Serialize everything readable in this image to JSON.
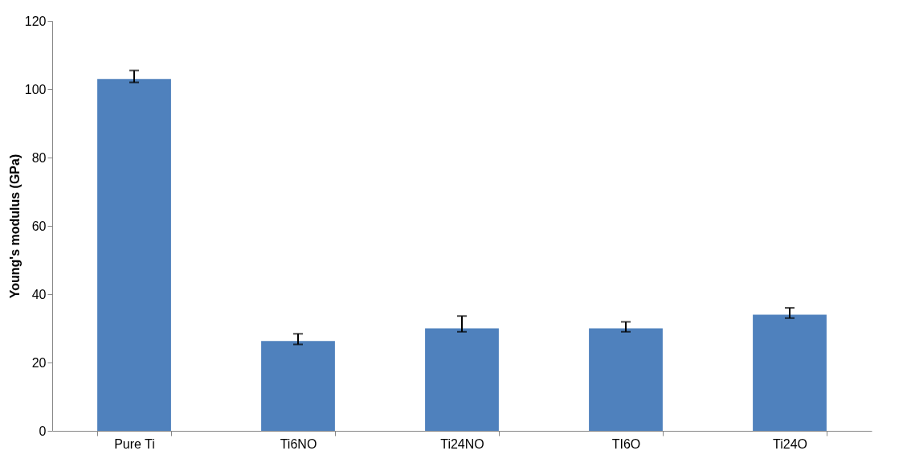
{
  "chart_data": {
    "type": "bar",
    "ylabel": "Young's modulus (GPa)",
    "categories": [
      "Pure Ti",
      "Ti6NO",
      "Ti24NO",
      "TI6O",
      "Ti24O"
    ],
    "values": [
      103,
      26.3,
      30,
      30,
      34
    ],
    "errors": [
      [
        102,
        105.5
      ],
      [
        25.3,
        28.4
      ],
      [
        29,
        33.6
      ],
      [
        29,
        31.9
      ],
      [
        33,
        36
      ]
    ],
    "color": "#4f81bd",
    "ylim": [
      0,
      120
    ],
    "yticks": [
      0,
      20,
      40,
      60,
      80,
      100,
      120
    ],
    "grid": false
  }
}
